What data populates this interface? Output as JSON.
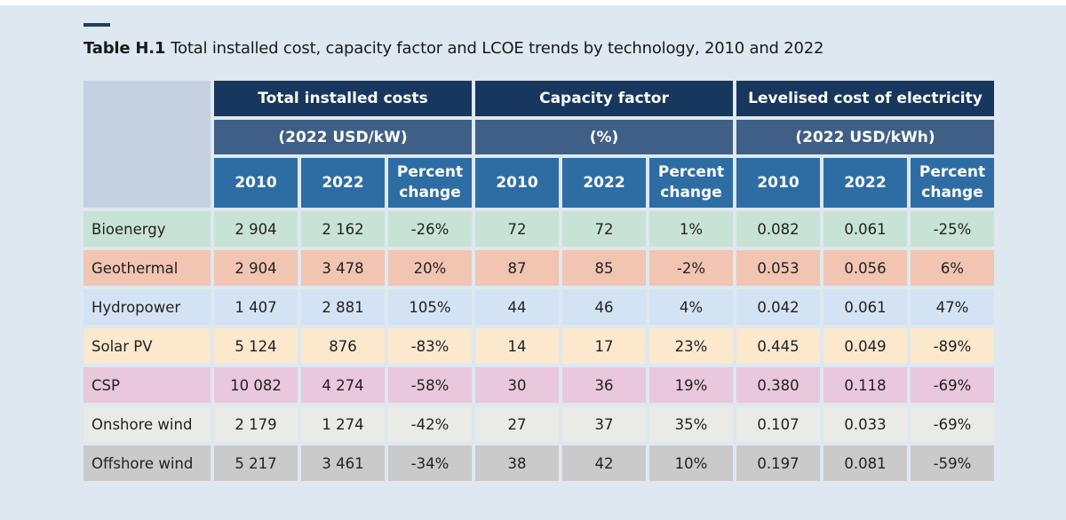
{
  "title": {
    "label": "Table H.1",
    "text": "Total installed cost, capacity factor and LCOE trends by technology, 2010 and 2022"
  },
  "groups": [
    {
      "name": "Total installed costs",
      "unit": "(2022 USD/kW)"
    },
    {
      "name": "Capacity factor",
      "unit": "(%)"
    },
    {
      "name": "Levelised cost of electricity",
      "unit": "(2022 USD/kWh)"
    }
  ],
  "subheaders": [
    "2010",
    "2022",
    "Percent change"
  ],
  "colors": {
    "header_dark": "#17375e",
    "header_mid": "#3f5f86",
    "header_light": "#2e6da4"
  },
  "rows": [
    {
      "tech": "Bioenergy",
      "color": "#c8e2d6",
      "values": [
        "2 904",
        "2 162",
        "-26%",
        "72",
        "72",
        "1%",
        "0.082",
        "0.061",
        "-25%"
      ]
    },
    {
      "tech": "Geothermal",
      "color": "#f1c5b1",
      "values": [
        "2 904",
        "3 478",
        "20%",
        "87",
        "85",
        "-2%",
        "0.053",
        "0.056",
        "6%"
      ]
    },
    {
      "tech": "Hydropower",
      "color": "#d4e3f3",
      "values": [
        "1 407",
        "2 881",
        "105%",
        "44",
        "46",
        "4%",
        "0.042",
        "0.061",
        "47%"
      ]
    },
    {
      "tech": "Solar PV",
      "color": "#fbe8cd",
      "values": [
        "5 124",
        "876",
        "-83%",
        "14",
        "17",
        "23%",
        "0.445",
        "0.049",
        "-89%"
      ]
    },
    {
      "tech": "CSP",
      "color": "#e8c8da",
      "values": [
        "10 082",
        "4 274",
        "-58%",
        "30",
        "36",
        "19%",
        "0.380",
        "0.118",
        "-69%"
      ]
    },
    {
      "tech": "Onshore wind",
      "color": "#eaeae6",
      "values": [
        "2 179",
        "1 274",
        "-42%",
        "27",
        "37",
        "35%",
        "0.107",
        "0.033",
        "-69%"
      ]
    },
    {
      "tech": "Offshore wind",
      "color": "#cbcacb",
      "values": [
        "5 217",
        "3 461",
        "-34%",
        "38",
        "42",
        "10%",
        "0.197",
        "0.081",
        "-59%"
      ]
    }
  ]
}
